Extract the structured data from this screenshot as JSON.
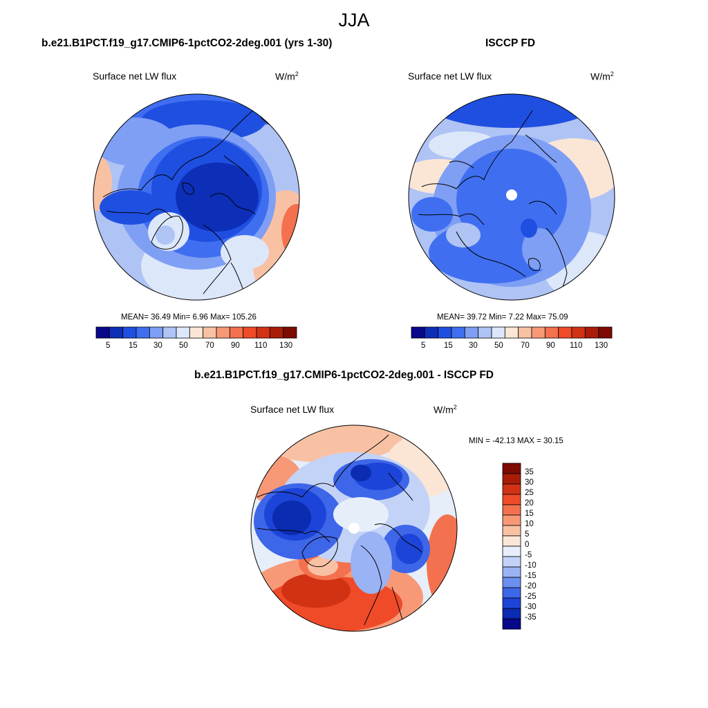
{
  "figure": {
    "title": "JJA"
  },
  "panels": [
    {
      "id": "model",
      "title": "b.e21.B1PCT.f19_g17.CMIP6-1pctCO2-2deg.001 (yrs 1-30)",
      "variable": "Surface net LW flux",
      "units_base": "W/m",
      "units_exp": "2",
      "stats": "MEAN=  36.49  Min=   6.96  Max= 105.26",
      "colorbar_ticks": [
        "5",
        "15",
        "30",
        "50",
        "70",
        "90",
        "110",
        "130"
      ]
    },
    {
      "id": "obs",
      "title": "ISCCP FD",
      "variable": "Surface net LW flux",
      "units_base": "W/m",
      "units_exp": "2",
      "stats": "MEAN=  39.72  Min=   7.22  Max=  75.09",
      "colorbar_ticks": [
        "5",
        "15",
        "30",
        "50",
        "70",
        "90",
        "110",
        "130"
      ]
    },
    {
      "id": "diff",
      "title": "b.e21.B1PCT.f19_g17.CMIP6-1pctCO2-2deg.001 - ISCCP FD",
      "variable": "Surface net LW flux",
      "units_base": "W/m",
      "units_exp": "2",
      "stats": "MIN = -42.13 MAX =  30.15",
      "colorbar_ticks": [
        "35",
        "30",
        "25",
        "20",
        "15",
        "10",
        "5",
        "0",
        "-5",
        "-10",
        "-15",
        "-20",
        "-25",
        "-30",
        "-35"
      ]
    }
  ],
  "colors": {
    "abs_scale": [
      "#08088a",
      "#0d2fb8",
      "#1f4fe0",
      "#3f6ff0",
      "#7f9ff5",
      "#afc3f5",
      "#dce7fa",
      "#fbe6d6",
      "#f9c1a4",
      "#f79977",
      "#f3714e",
      "#ef4b28",
      "#d23214",
      "#a91d08",
      "#7d0a03"
    ],
    "diff_scale": [
      "#7d0a03",
      "#a91d08",
      "#d23214",
      "#ef4b28",
      "#f3714e",
      "#f79977",
      "#f9c1a4",
      "#fbe6d6",
      "#e6eefa",
      "#c3d3f7",
      "#9ab3f4",
      "#6c8ff0",
      "#3e66e8",
      "#1d44d8",
      "#0b2bb0",
      "#08088a"
    ]
  }
}
